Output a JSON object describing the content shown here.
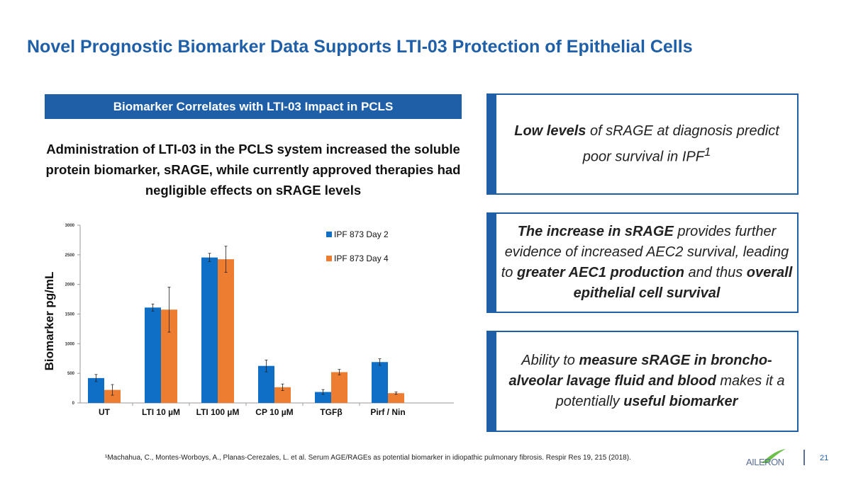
{
  "title": "Novel Prognostic Biomarker Data Supports LTI-03 Protection of Epithelial Cells",
  "banner": "Biomarker Correlates with LTI-03 Impact in PCLS",
  "lead": "Administration of LTI-03 in the PCLS system increased the soluble protein biomarker, sRAGE, while currently approved therapies had negligible effects on sRAGE levels",
  "boxes": [
    {
      "parts": [
        [
          "b",
          "Low levels"
        ],
        [
          "t",
          " of sRAGE at diagnosis predict poor survival in IPF"
        ],
        [
          "sup",
          "1"
        ]
      ]
    },
    {
      "parts": [
        [
          "b",
          "The increase in sRAGE"
        ],
        [
          "t",
          " provides further evidence of increased AEC2 survival, leading to "
        ],
        [
          "b",
          "greater AEC1 production"
        ],
        [
          "t",
          " and thus "
        ],
        [
          "b",
          "overall epithelial cell survival"
        ]
      ]
    },
    {
      "parts": [
        [
          "t",
          "Ability to "
        ],
        [
          "b",
          "measure sRAGE in broncho-alveolar lavage fluid and blood"
        ],
        [
          "t",
          " makes it a potentially "
        ],
        [
          "b",
          "useful biomarker"
        ]
      ]
    }
  ],
  "footnote": "¹Machahua, C., Montes-Worboys, A., Planas-Cerezales, L. et al. Serum AGE/RAGEs as potential biomarker in idiopathic pulmonary fibrosis. Respir Res 19, 215 (2018).",
  "logo": "AILERON",
  "page_number": "21",
  "colors": {
    "accent": "#1f5fa8",
    "series1": "#0f6fc6",
    "series2": "#ed7d31"
  },
  "chart_data": {
    "type": "bar",
    "ylabel": "Biomarker pg/mL",
    "xlabel": "",
    "ylim": [
      0,
      3000
    ],
    "yticks": [
      "0",
      "500",
      "1000",
      "1500",
      "2000",
      "2500",
      "3000"
    ],
    "categories": [
      "UT",
      "LTI 10 µM",
      "LTI 100 µM",
      "CP 10 µM",
      "TGFβ",
      "Pirf / Nin"
    ],
    "legend_position": "top-right",
    "grid": false,
    "series": [
      {
        "name": "IPF 873 Day 2",
        "values": [
          420,
          1610,
          2455,
          625,
          185,
          690
        ],
        "errors": [
          60,
          60,
          70,
          100,
          40,
          55
        ]
      },
      {
        "name": "IPF 873 Day 4",
        "values": [
          220,
          1575,
          2425,
          265,
          520,
          165
        ],
        "errors": [
          90,
          380,
          220,
          55,
          45,
          20
        ]
      }
    ]
  }
}
